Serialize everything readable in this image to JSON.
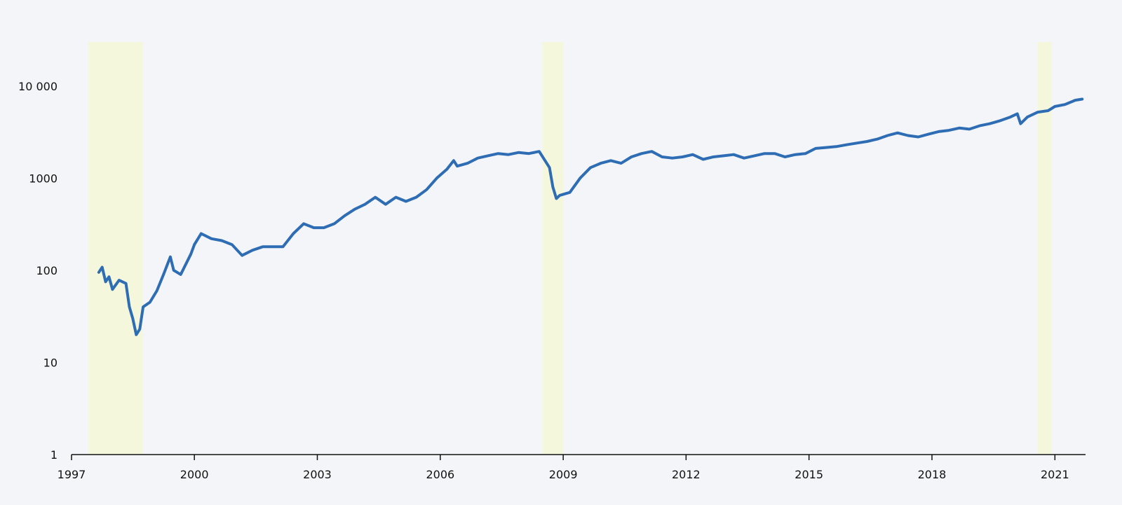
{
  "chart_data": {
    "type": "line",
    "title": "",
    "xlabel": "",
    "ylabel": "",
    "y_scale": "log",
    "ylim": [
      1,
      30000
    ],
    "xlim": [
      "1997-01-01",
      "2021-10-01"
    ],
    "x_ticks": [
      {
        "label": "1997",
        "date": "1997-01-01"
      },
      {
        "label": "2000",
        "date": "2000-01-01"
      },
      {
        "label": "2003",
        "date": "2003-01-01"
      },
      {
        "label": "2006",
        "date": "2006-01-01"
      },
      {
        "label": "2009",
        "date": "2009-01-01"
      },
      {
        "label": "2012",
        "date": "2012-01-01"
      },
      {
        "label": "2015",
        "date": "2015-01-01"
      },
      {
        "label": "2018",
        "date": "2018-01-01"
      },
      {
        "label": "2021",
        "date": "2021-01-01"
      }
    ],
    "y_ticks": [
      {
        "label": "1",
        "value": 1
      },
      {
        "label": "10",
        "value": 10
      },
      {
        "label": "100",
        "value": 100
      },
      {
        "label": "1000",
        "value": 1000
      },
      {
        "label": "10 000",
        "value": 10000
      }
    ],
    "grid": false,
    "shaded_periods": [
      {
        "start": "1997-06-01",
        "end": "1998-10-01"
      },
      {
        "start": "2008-07-01",
        "end": "2009-01-01"
      },
      {
        "start": "2020-08-01",
        "end": "2020-12-01"
      }
    ],
    "line_color": "#2e6db4",
    "shade_color": "#f5f7dc",
    "series": [
      {
        "points": [
          [
            "1997-09-01",
            95
          ],
          [
            "1997-10-01",
            108
          ],
          [
            "1997-11-01",
            75
          ],
          [
            "1997-12-01",
            85
          ],
          [
            "1998-01-01",
            62
          ],
          [
            "1998-03-01",
            78
          ],
          [
            "1998-05-01",
            72
          ],
          [
            "1998-06-01",
            40
          ],
          [
            "1998-07-01",
            30
          ],
          [
            "1998-08-01",
            20
          ],
          [
            "1998-09-01",
            23
          ],
          [
            "1998-10-01",
            40
          ],
          [
            "1998-12-01",
            45
          ],
          [
            "1999-02-01",
            60
          ],
          [
            "1999-04-01",
            90
          ],
          [
            "1999-06-01",
            140
          ],
          [
            "1999-07-01",
            100
          ],
          [
            "1999-09-01",
            90
          ],
          [
            "1999-12-01",
            150
          ],
          [
            "2000-01-01",
            190
          ],
          [
            "2000-03-01",
            250
          ],
          [
            "2000-06-01",
            220
          ],
          [
            "2000-09-01",
            210
          ],
          [
            "2000-12-01",
            190
          ],
          [
            "2001-03-01",
            145
          ],
          [
            "2001-06-01",
            165
          ],
          [
            "2001-09-01",
            180
          ],
          [
            "2001-12-01",
            180
          ],
          [
            "2002-03-01",
            180
          ],
          [
            "2002-06-01",
            250
          ],
          [
            "2002-09-01",
            320
          ],
          [
            "2002-12-01",
            290
          ],
          [
            "2003-03-01",
            290
          ],
          [
            "2003-06-01",
            320
          ],
          [
            "2003-09-01",
            390
          ],
          [
            "2003-12-01",
            460
          ],
          [
            "2004-03-01",
            520
          ],
          [
            "2004-06-01",
            620
          ],
          [
            "2004-09-01",
            520
          ],
          [
            "2004-12-01",
            620
          ],
          [
            "2005-03-01",
            560
          ],
          [
            "2005-06-01",
            620
          ],
          [
            "2005-09-01",
            750
          ],
          [
            "2005-12-01",
            1000
          ],
          [
            "2006-03-01",
            1250
          ],
          [
            "2006-05-01",
            1550
          ],
          [
            "2006-06-01",
            1350
          ],
          [
            "2006-09-01",
            1450
          ],
          [
            "2006-12-01",
            1650
          ],
          [
            "2007-03-01",
            1750
          ],
          [
            "2007-06-01",
            1850
          ],
          [
            "2007-09-01",
            1800
          ],
          [
            "2007-12-01",
            1900
          ],
          [
            "2008-03-01",
            1850
          ],
          [
            "2008-06-01",
            1950
          ],
          [
            "2008-09-01",
            1300
          ],
          [
            "2008-10-01",
            800
          ],
          [
            "2008-11-01",
            600
          ],
          [
            "2008-12-01",
            650
          ],
          [
            "2009-03-01",
            700
          ],
          [
            "2009-06-01",
            1000
          ],
          [
            "2009-09-01",
            1300
          ],
          [
            "2009-12-01",
            1450
          ],
          [
            "2010-03-01",
            1550
          ],
          [
            "2010-06-01",
            1450
          ],
          [
            "2010-09-01",
            1700
          ],
          [
            "2010-12-01",
            1850
          ],
          [
            "2011-03-01",
            1950
          ],
          [
            "2011-06-01",
            1700
          ],
          [
            "2011-09-01",
            1650
          ],
          [
            "2011-12-01",
            1700
          ],
          [
            "2012-03-01",
            1800
          ],
          [
            "2012-06-01",
            1600
          ],
          [
            "2012-09-01",
            1700
          ],
          [
            "2012-12-01",
            1750
          ],
          [
            "2013-03-01",
            1800
          ],
          [
            "2013-06-01",
            1650
          ],
          [
            "2013-09-01",
            1750
          ],
          [
            "2013-12-01",
            1850
          ],
          [
            "2014-03-01",
            1850
          ],
          [
            "2014-06-01",
            1700
          ],
          [
            "2014-09-01",
            1800
          ],
          [
            "2014-12-01",
            1850
          ],
          [
            "2015-03-01",
            2100
          ],
          [
            "2015-06-01",
            2150
          ],
          [
            "2015-09-01",
            2200
          ],
          [
            "2015-12-01",
            2300
          ],
          [
            "2016-03-01",
            2400
          ],
          [
            "2016-06-01",
            2500
          ],
          [
            "2016-09-01",
            2650
          ],
          [
            "2016-12-01",
            2900
          ],
          [
            "2017-03-01",
            3100
          ],
          [
            "2017-06-01",
            2900
          ],
          [
            "2017-09-01",
            2800
          ],
          [
            "2017-12-01",
            3000
          ],
          [
            "2018-03-01",
            3200
          ],
          [
            "2018-06-01",
            3300
          ],
          [
            "2018-09-01",
            3500
          ],
          [
            "2018-12-01",
            3400
          ],
          [
            "2019-03-01",
            3700
          ],
          [
            "2019-06-01",
            3900
          ],
          [
            "2019-09-01",
            4200
          ],
          [
            "2019-12-01",
            4600
          ],
          [
            "2020-02-01",
            5000
          ],
          [
            "2020-03-01",
            3900
          ],
          [
            "2020-05-01",
            4600
          ],
          [
            "2020-08-01",
            5200
          ],
          [
            "2020-11-01",
            5400
          ],
          [
            "2021-01-01",
            6000
          ],
          [
            "2021-04-01",
            6300
          ],
          [
            "2021-07-01",
            7000
          ],
          [
            "2021-09-01",
            7200
          ]
        ]
      }
    ]
  }
}
